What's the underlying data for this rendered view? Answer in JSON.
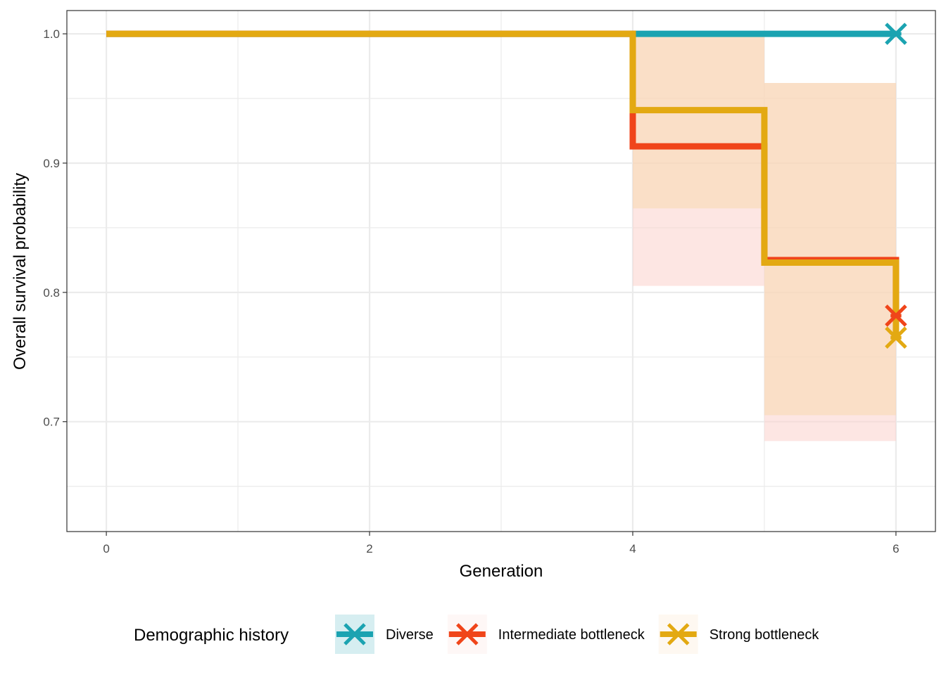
{
  "chart_data": {
    "type": "line",
    "subtype": "step-survival",
    "title": "",
    "xlabel": "Generation",
    "ylabel": "Overall survival probability",
    "xlim": [
      -0.3,
      6.3
    ],
    "ylim": [
      0.615,
      1.018
    ],
    "x_ticks": [
      0,
      2,
      4,
      6
    ],
    "x_tick_labels": [
      "0",
      "2",
      "4",
      "6"
    ],
    "y_ticks": [
      0.7,
      0.8,
      0.9,
      1.0
    ],
    "y_tick_labels": [
      "0.7",
      "0.8",
      "0.9",
      "1.0"
    ],
    "grid": true,
    "legend": {
      "title": "Demographic history",
      "position": "bottom"
    },
    "series": [
      {
        "name": "Diverse",
        "color": "#1ba3b1",
        "fill": "#1ba3b1",
        "steps": [
          [
            0,
            1.0
          ],
          [
            4,
            1.0
          ],
          [
            5,
            1.0
          ],
          [
            6,
            1.0
          ]
        ],
        "lower": [
          [
            0,
            1.0
          ],
          [
            4,
            1.0
          ],
          [
            5,
            1.0
          ],
          [
            6,
            1.0
          ]
        ],
        "upper": [
          [
            0,
            1.0
          ],
          [
            4,
            1.0
          ],
          [
            5,
            1.0
          ],
          [
            6,
            1.0
          ]
        ],
        "censor": [
          [
            6,
            1.0
          ]
        ]
      },
      {
        "name": "Intermediate bottleneck",
        "color": "#f0451a",
        "fill": "#fcd2cc",
        "steps": [
          [
            0,
            1.0
          ],
          [
            4,
            0.913
          ],
          [
            5,
            0.825
          ],
          [
            6,
            0.782
          ]
        ],
        "lower": [
          [
            0,
            1.0
          ],
          [
            4,
            0.805
          ],
          [
            5,
            0.685
          ],
          [
            6,
            0.685
          ]
        ],
        "upper": [
          [
            0,
            1.0
          ],
          [
            4,
            1.0
          ],
          [
            5,
            0.962
          ],
          [
            6,
            0.962
          ]
        ],
        "censor": [
          [
            6,
            0.782
          ]
        ]
      },
      {
        "name": "Strong bottleneck",
        "color": "#e3a912",
        "fill": "#f7d9b0",
        "steps": [
          [
            0,
            1.0
          ],
          [
            4,
            0.941
          ],
          [
            5,
            0.823
          ],
          [
            6,
            0.765
          ]
        ],
        "lower": [
          [
            0,
            1.0
          ],
          [
            4,
            0.865
          ],
          [
            5,
            0.705
          ],
          [
            6,
            0.705
          ]
        ],
        "upper": [
          [
            0,
            1.0
          ],
          [
            4,
            1.0
          ],
          [
            5,
            0.962
          ],
          [
            6,
            0.962
          ]
        ],
        "censor": [
          [
            6,
            0.765
          ]
        ]
      }
    ]
  }
}
